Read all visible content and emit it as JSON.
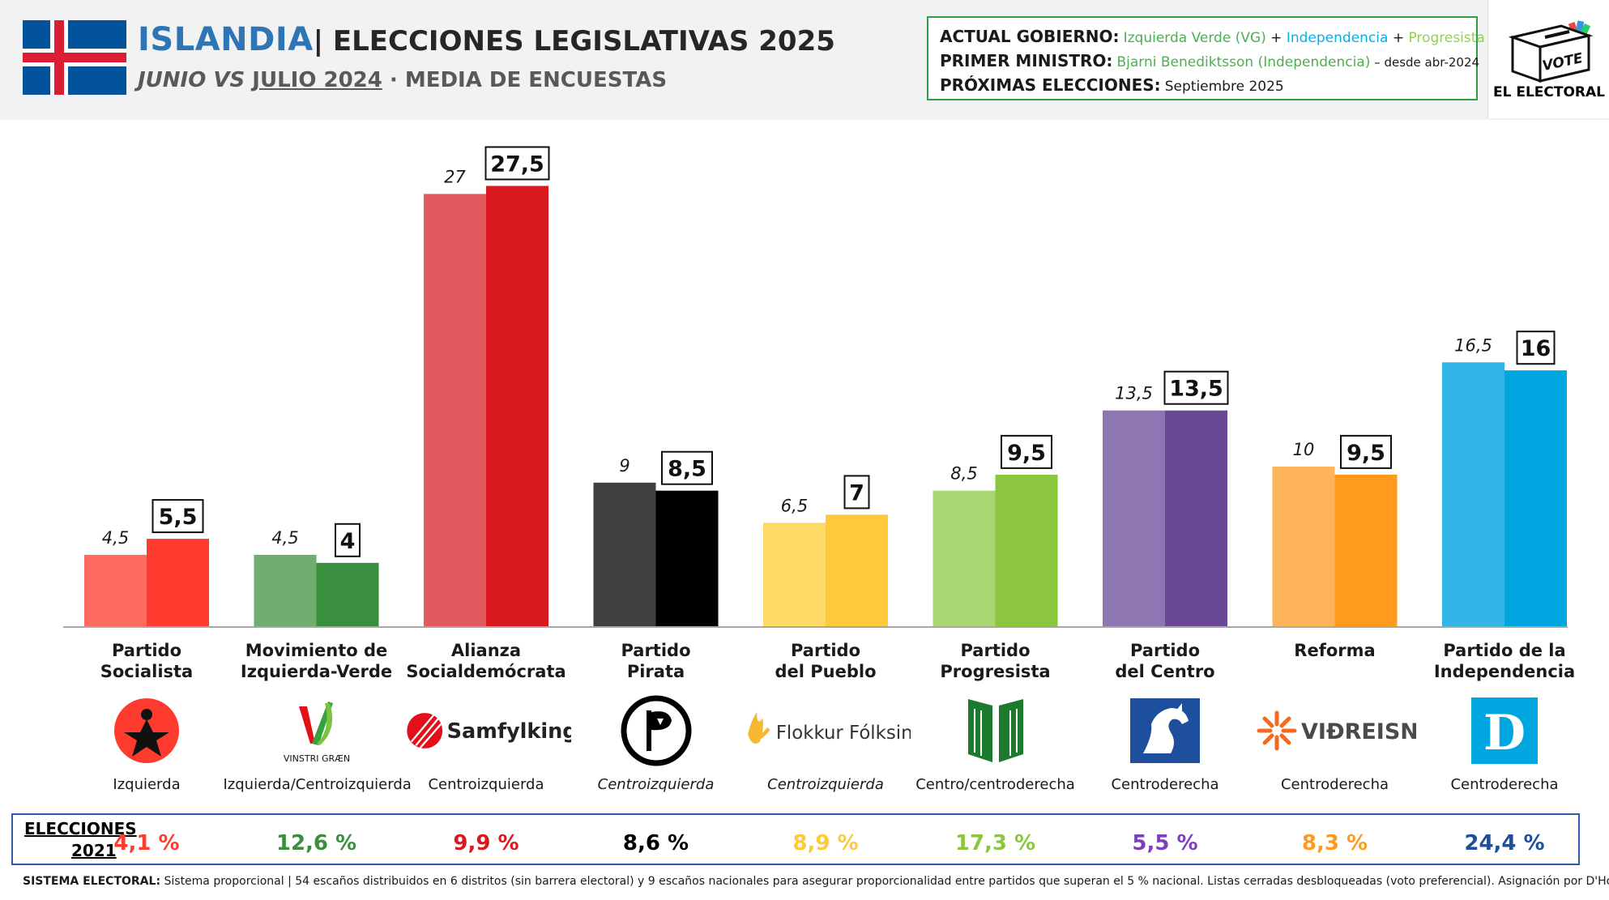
{
  "header": {
    "country": "ISLANDIA",
    "title": "| ELECCIONES LEGISLATIVAS 2025",
    "subtitle_part1": "JUNIO VS",
    "subtitle_part2": "JULIO 2024",
    "subtitle_part3": " · MEDIA DE ENCUESTAS"
  },
  "info": {
    "gov_label": "ACTUAL GOBIERNO:",
    "gov_parts": [
      {
        "text": "Izquierda Verde (VG)",
        "color": "#4caf50"
      },
      {
        "text": " + ",
        "color": "#1a1a1a"
      },
      {
        "text": "Independencia",
        "color": "#00b0f0"
      },
      {
        "text": " + ",
        "color": "#1a1a1a"
      },
      {
        "text": "Progresista",
        "color": "#92d050"
      }
    ],
    "pm_label": "PRIMER MINISTRO:",
    "pm_value": "Bjarni Benediktsson (Independencia)",
    "pm_since": " – desde abr-2024",
    "next_label": "PRÓXIMAS ELECCIONES:",
    "next_value": "Septiembre 2025"
  },
  "logo": {
    "vote_text": "VOTE",
    "brand": "EL ELECTORAL"
  },
  "chart_data": {
    "type": "bar",
    "categories": [
      "Partido Socialista",
      "Movimiento de Izquierda-Verde",
      "Alianza Socialdemócrata",
      "Partido Pirata",
      "Partido del Pueblo",
      "Partido Progresista",
      "Partido del Centro",
      "Reforma",
      "Partido de la Independencia"
    ],
    "series": [
      {
        "name": "JUNIO",
        "values": [
          4.5,
          4.5,
          27,
          9,
          6.5,
          8.5,
          13.5,
          10,
          16.5
        ],
        "labels": [
          "4,5",
          "4,5",
          "27",
          "9",
          "6,5",
          "8,5",
          "13,5",
          "10",
          "16,5"
        ]
      },
      {
        "name": "JULIO 2024",
        "values": [
          5.5,
          4,
          27.5,
          8.5,
          7,
          9.5,
          13.5,
          9.5,
          16
        ],
        "labels": [
          "5,5",
          "4",
          "27,5",
          "8,5",
          "7",
          "9,5",
          "13,5",
          "9,5",
          "16"
        ]
      }
    ],
    "ylim": [
      0,
      30
    ],
    "grid": false,
    "colors_prev": [
      "#ff6b5e",
      "#6fad6f",
      "#e05a5e",
      "#404040",
      "#ffd966",
      "#a9d671",
      "#8e76b2",
      "#fdb45a",
      "#32b4e6"
    ],
    "colors_curr": [
      "#ff3b30",
      "#3a8f3e",
      "#d9191f",
      "#000000",
      "#ffc93c",
      "#8cc63f",
      "#6a4896",
      "#ff9a1f",
      "#00a6df"
    ]
  },
  "parties": [
    {
      "name_l1": "Partido",
      "name_l2": "Socialista",
      "ideology": "Izquierda",
      "ideology_italic": false,
      "logo": "star-circle-icon",
      "logo_text": "",
      "color": "#ff3b30",
      "elections_2021": "4,1 %",
      "elec_color": "#ff3b30"
    },
    {
      "name_l1": "Movimiento de",
      "name_l2": "Izquierda-Verde",
      "ideology": "Izquierda/Centroizquierda",
      "ideology_italic": false,
      "logo": "vinstri-graen-icon",
      "logo_text": "VINSTRI GRÆN",
      "color": "#3a8f3e",
      "elec_color": "#3a8f3e",
      "elections_2021": "12,6 %"
    },
    {
      "name_l1": "Alianza",
      "name_l2": "Socialdemócrata",
      "ideology": "Centroizquierda",
      "ideology_italic": false,
      "logo": "samfylkingin-icon",
      "logo_text": "Samfylkingin",
      "color": "#d9191f",
      "elec_color": "#d9191f",
      "elections_2021": "9,9 %"
    },
    {
      "name_l1": "Partido",
      "name_l2": "Pirata",
      "ideology": "Centroizquierda",
      "ideology_italic": true,
      "logo": "pirate-flag-icon",
      "logo_text": "",
      "color": "#000000",
      "elec_color": "#000000",
      "elections_2021": "8,6 %"
    },
    {
      "name_l1": "Partido",
      "name_l2": "del Pueblo",
      "ideology": "Centroizquierda",
      "ideology_italic": true,
      "logo": "flokkur-folksins-icon",
      "logo_text": "Flokkur Fólksins",
      "color": "#ffc93c",
      "elec_color": "#ffc93c",
      "elections_2021": "8,9 %"
    },
    {
      "name_l1": "Partido",
      "name_l2": "Progresista",
      "ideology": "Centro/centroderecha",
      "ideology_italic": false,
      "logo": "progressive-book-icon",
      "logo_text": "",
      "color": "#8cc63f",
      "elec_color": "#8cc63f",
      "elections_2021": "17,3 %"
    },
    {
      "name_l1": "Partido",
      "name_l2": "del Centro",
      "ideology": "Centroderecha",
      "ideology_italic": false,
      "logo": "horse-icon",
      "logo_text": "",
      "color": "#6a4896",
      "elec_color": "#7e3fbf",
      "elections_2021": "5,5 %"
    },
    {
      "name_l1": "Reforma",
      "name_l2": "",
      "ideology": "Centroderecha",
      "ideology_italic": false,
      "logo": "vidreisn-icon",
      "logo_text": "VIÐREISN",
      "color": "#ff9a1f",
      "elec_color": "#ff9a1f",
      "elections_2021": "8,3 %"
    },
    {
      "name_l1": "Partido de la",
      "name_l2": "Independencia",
      "ideology": "Centroderecha",
      "ideology_italic": false,
      "logo": "d-square-icon",
      "logo_text": "D",
      "color": "#00a6df",
      "elec_color": "#1f4e9a",
      "elections_2021": "24,4 %"
    }
  ],
  "elections": {
    "label_l1": "ELECCIONES",
    "label_l2": "2021"
  },
  "footer": {
    "label": "SISTEMA ELECTORAL:",
    "text": " Sistema proporcional | 54 escaños distribuidos en 6 distritos (sin barrera electoral) y 9 escaños nacionales para asegurar proporcionalidad entre partidos que superan el 5 % nacional. Listas cerradas desbloqueadas (voto preferencial). Asignación por D'Hondt."
  }
}
